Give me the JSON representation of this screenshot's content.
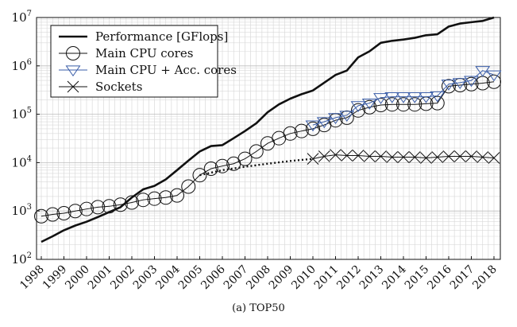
{
  "chart_data": {
    "type": "line",
    "caption": "(a) TOP50",
    "x_tick_labels": [
      "1998",
      "1999",
      "2000",
      "2001",
      "2002",
      "2003",
      "2004",
      "2005",
      "2006",
      "2007",
      "2008",
      "2009",
      "2010",
      "2011",
      "2012",
      "2013",
      "2014",
      "2015",
      "2016",
      "2017",
      "2018"
    ],
    "y_tick_labels": [
      {
        "base": "10",
        "exp": "2"
      },
      {
        "base": "10",
        "exp": "3"
      },
      {
        "base": "10",
        "exp": "4"
      },
      {
        "base": "10",
        "exp": "5"
      },
      {
        "base": "10",
        "exp": "6"
      },
      {
        "base": "10",
        "exp": "7"
      }
    ],
    "y_scale": "log",
    "ylim": [
      100,
      10000000
    ],
    "xlim": [
      1998,
      2018
    ],
    "grid": true,
    "legend_position": "top-left",
    "series": [
      {
        "name": "Performance [GFlops]",
        "style": "solid-thick",
        "color": "#111111",
        "x": [
          1998.0,
          1998.5,
          1999.0,
          1999.5,
          2000.0,
          2000.5,
          2001.0,
          2001.5,
          2002.0,
          2002.5,
          2003.0,
          2003.5,
          2004.0,
          2004.5,
          2005.0,
          2005.5,
          2006.0,
          2006.5,
          2007.0,
          2007.5,
          2008.0,
          2008.5,
          2009.0,
          2009.5,
          2010.0,
          2010.5,
          2011.0,
          2011.5,
          2012.0,
          2012.5,
          2013.0,
          2013.5,
          2014.0,
          2014.5,
          2015.0,
          2015.5,
          2016.0,
          2016.5,
          2017.0,
          2017.5,
          2018.0
        ],
        "values": [
          230,
          300,
          400,
          500,
          600,
          750,
          950,
          1200,
          1900,
          2800,
          3300,
          4500,
          7000,
          11000,
          17000,
          22000,
          23000,
          32000,
          45000,
          65000,
          110000,
          160000,
          210000,
          260000,
          310000,
          450000,
          650000,
          800000,
          1500000,
          2000000,
          3000000,
          3300000,
          3500000,
          3800000,
          4300000,
          4500000,
          6500000,
          7500000,
          8000000,
          8500000,
          13000000
        ]
      },
      {
        "name": "Main CPU cores",
        "marker": "circle",
        "color": "#111111",
        "x": [
          1998.0,
          1998.5,
          1999.0,
          1999.5,
          2000.0,
          2000.5,
          2001.0,
          2001.5,
          2002.0,
          2002.5,
          2003.0,
          2003.5,
          2004.0,
          2004.5,
          2005.0,
          2005.5,
          2006.0,
          2006.5,
          2007.0,
          2007.5,
          2008.0,
          2008.5,
          2009.0,
          2009.5,
          2010.0,
          2010.5,
          2011.0,
          2011.5,
          2012.0,
          2012.5,
          2013.0,
          2013.5,
          2014.0,
          2014.5,
          2015.0,
          2015.5,
          2016.0,
          2016.5,
          2017.0,
          2017.5,
          2018.0
        ],
        "values": [
          780,
          850,
          900,
          1000,
          1100,
          1200,
          1250,
          1350,
          1500,
          1700,
          1800,
          1900,
          2100,
          3200,
          5500,
          7500,
          8500,
          9500,
          12000,
          17000,
          25000,
          32000,
          40000,
          45000,
          50000,
          60000,
          75000,
          85000,
          120000,
          140000,
          155000,
          160000,
          160000,
          160000,
          165000,
          170000,
          380000,
          400000,
          420000,
          440000,
          470000
        ]
      },
      {
        "name": "Main CPU + Acc. cores",
        "marker": "triangle-down",
        "color": "#3a5da8",
        "x": [
          2010.0,
          2010.5,
          2011.0,
          2011.5,
          2012.0,
          2012.5,
          2013.0,
          2013.5,
          2014.0,
          2014.5,
          2015.0,
          2015.5,
          2016.0,
          2016.5,
          2017.0,
          2017.5,
          2018.0
        ],
        "values": [
          60000,
          70000,
          85000,
          95000,
          150000,
          170000,
          220000,
          230000,
          230000,
          230000,
          230000,
          240000,
          420000,
          450000,
          500000,
          800000,
          650000
        ]
      },
      {
        "name": "Sockets",
        "marker": "x",
        "color": "#111111",
        "x": [
          2010.0,
          2010.5,
          2011.0,
          2011.5,
          2012.0,
          2012.5,
          2013.0,
          2013.5,
          2014.0,
          2014.5,
          2015.0,
          2015.5,
          2016.0,
          2016.5,
          2017.0,
          2017.5,
          2018.0
        ],
        "values": [
          12000,
          13500,
          14500,
          14000,
          14000,
          13500,
          13500,
          13000,
          13000,
          13000,
          12500,
          13000,
          13500,
          13500,
          13500,
          13000,
          12500
        ]
      },
      {
        "name": "",
        "style": "dotted-thick",
        "color": "#111111",
        "x": [
          2005.0,
          2006.0,
          2007.0,
          2008.0,
          2009.0,
          2010.0
        ],
        "values": [
          5500,
          7000,
          8200,
          9500,
          10800,
          12000
        ]
      }
    ]
  }
}
